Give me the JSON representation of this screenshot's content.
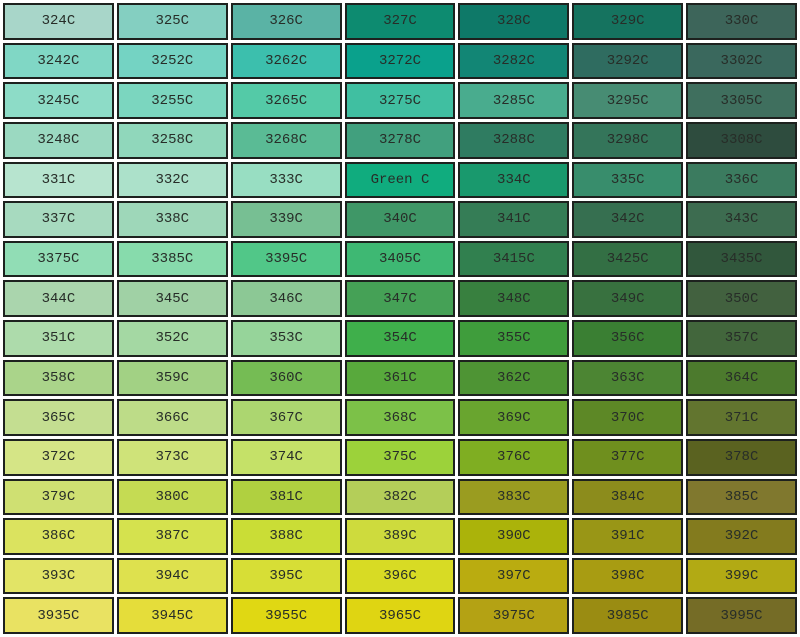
{
  "page": {
    "background_color": "#FFFFFF",
    "cell_border_color": "#1D211E",
    "label_text_color": "#272D28"
  },
  "chart_data": {
    "type": "table",
    "title": "",
    "column_count": 7,
    "row_count": 16,
    "cells": [
      [
        {
          "label": "324C",
          "color": "#A8D6C9"
        },
        {
          "label": "325C",
          "color": "#84CFC1"
        },
        {
          "label": "326C",
          "color": "#5AB3A5"
        },
        {
          "label": "327C",
          "color": "#0D8B70"
        },
        {
          "label": "328C",
          "color": "#0E7968"
        },
        {
          "label": "329C",
          "color": "#15735F"
        },
        {
          "label": "330C",
          "color": "#3D655A"
        }
      ],
      [
        {
          "label": "3242C",
          "color": "#80D7C5"
        },
        {
          "label": "3252C",
          "color": "#74D3C3"
        },
        {
          "label": "3262C",
          "color": "#3CBFAD"
        },
        {
          "label": "3272C",
          "color": "#0AA18C"
        },
        {
          "label": "3282C",
          "color": "#128675"
        },
        {
          "label": "3292C",
          "color": "#2F6C60"
        },
        {
          "label": "3302C",
          "color": "#3A685D"
        }
      ],
      [
        {
          "label": "3245C",
          "color": "#8DDCC7"
        },
        {
          "label": "3255C",
          "color": "#7BD6BF"
        },
        {
          "label": "3265C",
          "color": "#54CAA7"
        },
        {
          "label": "3275C",
          "color": "#40BFA1"
        },
        {
          "label": "3285C",
          "color": "#49AC8E"
        },
        {
          "label": "3295C",
          "color": "#478C73"
        },
        {
          "label": "3305C",
          "color": "#3F6F5E"
        }
      ],
      [
        {
          "label": "3248C",
          "color": "#9BD9C1"
        },
        {
          "label": "3258C",
          "color": "#90D7BB"
        },
        {
          "label": "3268C",
          "color": "#5ABB95"
        },
        {
          "label": "3278C",
          "color": "#41A07E"
        },
        {
          "label": "3288C",
          "color": "#2F7C61"
        },
        {
          "label": "3298C",
          "color": "#34755A"
        },
        {
          "label": "3308C",
          "color": "#2E4C3E"
        }
      ],
      [
        {
          "label": "331C",
          "color": "#B7E4CF"
        },
        {
          "label": "332C",
          "color": "#ACE1CA"
        },
        {
          "label": "333C",
          "color": "#98DEC2"
        },
        {
          "label": "Green C",
          "color": "#10AC7E"
        },
        {
          "label": "334C",
          "color": "#19996D"
        },
        {
          "label": "335C",
          "color": "#388D6C"
        },
        {
          "label": "336C",
          "color": "#3B7B5F"
        }
      ],
      [
        {
          "label": "337C",
          "color": "#A7DABF"
        },
        {
          "label": "338C",
          "color": "#9ED7B9"
        },
        {
          "label": "339C",
          "color": "#77BF93"
        },
        {
          "label": "340C",
          "color": "#3F9767"
        },
        {
          "label": "341C",
          "color": "#357D56"
        },
        {
          "label": "342C",
          "color": "#366F50"
        },
        {
          "label": "343C",
          "color": "#3D6C50"
        }
      ],
      [
        {
          "label": "3375C",
          "color": "#91DDB5"
        },
        {
          "label": "3385C",
          "color": "#87DBAC"
        },
        {
          "label": "3395C",
          "color": "#51C788"
        },
        {
          "label": "3405C",
          "color": "#3EB873"
        },
        {
          "label": "3415C",
          "color": "#31804F"
        },
        {
          "label": "3425C",
          "color": "#336F44"
        },
        {
          "label": "3435C",
          "color": "#31573C"
        }
      ],
      [
        {
          "label": "344C",
          "color": "#AAD5AD"
        },
        {
          "label": "345C",
          "color": "#A0D1A5"
        },
        {
          "label": "346C",
          "color": "#8CC895"
        },
        {
          "label": "347C",
          "color": "#45A156"
        },
        {
          "label": "348C",
          "color": "#38803F"
        },
        {
          "label": "349C",
          "color": "#38713F"
        },
        {
          "label": "350C",
          "color": "#42613F"
        }
      ],
      [
        {
          "label": "351C",
          "color": "#ADDBAB"
        },
        {
          "label": "352C",
          "color": "#A4D8A3"
        },
        {
          "label": "353C",
          "color": "#96D49A"
        },
        {
          "label": "354C",
          "color": "#3FAF4B"
        },
        {
          "label": "355C",
          "color": "#3F9D3C"
        },
        {
          "label": "356C",
          "color": "#3A7F33"
        },
        {
          "label": "357C",
          "color": "#42663C"
        }
      ],
      [
        {
          "label": "358C",
          "color": "#AAD48A"
        },
        {
          "label": "359C",
          "color": "#A2D184"
        },
        {
          "label": "360C",
          "color": "#75BC54"
        },
        {
          "label": "361C",
          "color": "#58A93C"
        },
        {
          "label": "362C",
          "color": "#4E9434"
        },
        {
          "label": "363C",
          "color": "#4C8533"
        },
        {
          "label": "364C",
          "color": "#4C7A2D"
        }
      ],
      [
        {
          "label": "365C",
          "color": "#C4DE91"
        },
        {
          "label": "366C",
          "color": "#BDDC88"
        },
        {
          "label": "367C",
          "color": "#ACD670"
        },
        {
          "label": "368C",
          "color": "#7CC148"
        },
        {
          "label": "369C",
          "color": "#69A52F"
        },
        {
          "label": "370C",
          "color": "#5D8826"
        },
        {
          "label": "371C",
          "color": "#62752F"
        }
      ],
      [
        {
          "label": "372C",
          "color": "#D5E586"
        },
        {
          "label": "373C",
          "color": "#CFE379"
        },
        {
          "label": "374C",
          "color": "#C5E168"
        },
        {
          "label": "375C",
          "color": "#9CD23A"
        },
        {
          "label": "376C",
          "color": "#7FAE22"
        },
        {
          "label": "377C",
          "color": "#6F8F1E"
        },
        {
          "label": "378C",
          "color": "#5A6220"
        }
      ],
      [
        {
          "label": "379C",
          "color": "#CFE072"
        },
        {
          "label": "380C",
          "color": "#C5DB53"
        },
        {
          "label": "381C",
          "color": "#B0D040"
        },
        {
          "label": "382C",
          "color": "#B4CE59"
        },
        {
          "label": "383C",
          "color": "#9A9C20"
        },
        {
          "label": "384C",
          "color": "#8C8C1C"
        },
        {
          "label": "385C",
          "color": "#80782E"
        }
      ],
      [
        {
          "label": "386C",
          "color": "#DBE35F"
        },
        {
          "label": "387C",
          "color": "#D5E24E"
        },
        {
          "label": "388C",
          "color": "#CADD36"
        },
        {
          "label": "389C",
          "color": "#CEDB3D"
        },
        {
          "label": "390C",
          "color": "#ABB30A"
        },
        {
          "label": "391C",
          "color": "#999616"
        },
        {
          "label": "392C",
          "color": "#837B1E"
        }
      ],
      [
        {
          "label": "393C",
          "color": "#E2E466"
        },
        {
          "label": "394C",
          "color": "#DEE14E"
        },
        {
          "label": "395C",
          "color": "#D7DE36"
        },
        {
          "label": "396C",
          "color": "#D8DB24"
        },
        {
          "label": "397C",
          "color": "#BAAC10"
        },
        {
          "label": "398C",
          "color": "#A89C12"
        },
        {
          "label": "399C",
          "color": "#B2AA14"
        }
      ],
      [
        {
          "label": "3935C",
          "color": "#E9E262"
        },
        {
          "label": "3945C",
          "color": "#E5DD3A"
        },
        {
          "label": "3955C",
          "color": "#E0D813"
        },
        {
          "label": "3965C",
          "color": "#DFD512"
        },
        {
          "label": "3975C",
          "color": "#B4A214"
        },
        {
          "label": "3985C",
          "color": "#9A8C12"
        },
        {
          "label": "3995C",
          "color": "#756C26"
        }
      ]
    ]
  }
}
